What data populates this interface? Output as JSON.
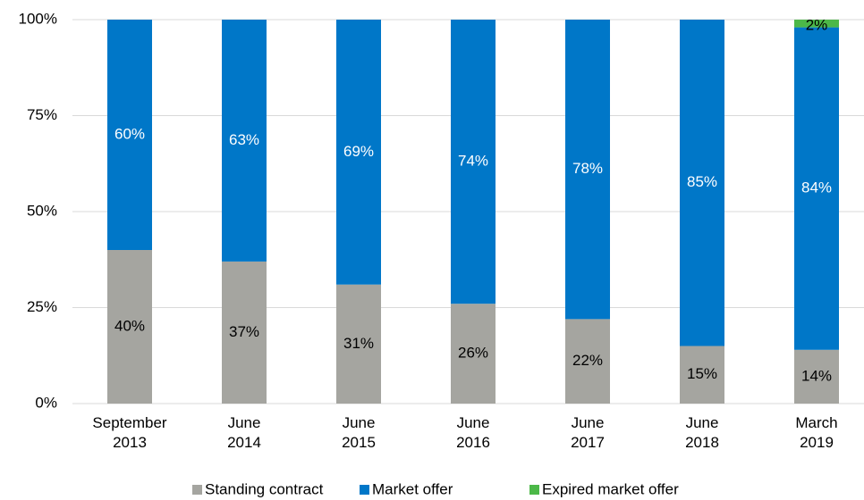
{
  "chart_data": {
    "type": "stacked_bar",
    "categories": [
      "September 2013",
      "June 2014",
      "June 2015",
      "June 2016",
      "June 2017",
      "June 2018",
      "March 2019"
    ],
    "series": [
      {
        "name": "Standing contract",
        "color": "#a5a5a0",
        "label_color": "#000000",
        "values": [
          40,
          37,
          31,
          26,
          22,
          15,
          14
        ],
        "value_labels": [
          "40%",
          "37%",
          "31%",
          "26%",
          "22%",
          "15%",
          "14%"
        ]
      },
      {
        "name": "Market offer",
        "color": "#0077c8",
        "label_color": "#ffffff",
        "values": [
          60,
          63,
          69,
          74,
          78,
          85,
          84
        ],
        "value_labels": [
          "60%",
          "63%",
          "69%",
          "74%",
          "78%",
          "85%",
          "84%"
        ]
      },
      {
        "name": "Expired market offer",
        "color": "#4cb848",
        "label_color": "#000000",
        "values": [
          null,
          null,
          null,
          null,
          null,
          null,
          2
        ],
        "value_labels": [
          null,
          null,
          null,
          null,
          null,
          null,
          "2%"
        ]
      }
    ],
    "ylim": [
      0,
      100
    ],
    "yticks": [
      {
        "value": 0,
        "label": "0%"
      },
      {
        "value": 25,
        "label": "25%"
      },
      {
        "value": 50,
        "label": "50%"
      },
      {
        "value": 75,
        "label": "75%"
      },
      {
        "value": 100,
        "label": "100%"
      }
    ],
    "grid": true,
    "legend": "bottom"
  }
}
